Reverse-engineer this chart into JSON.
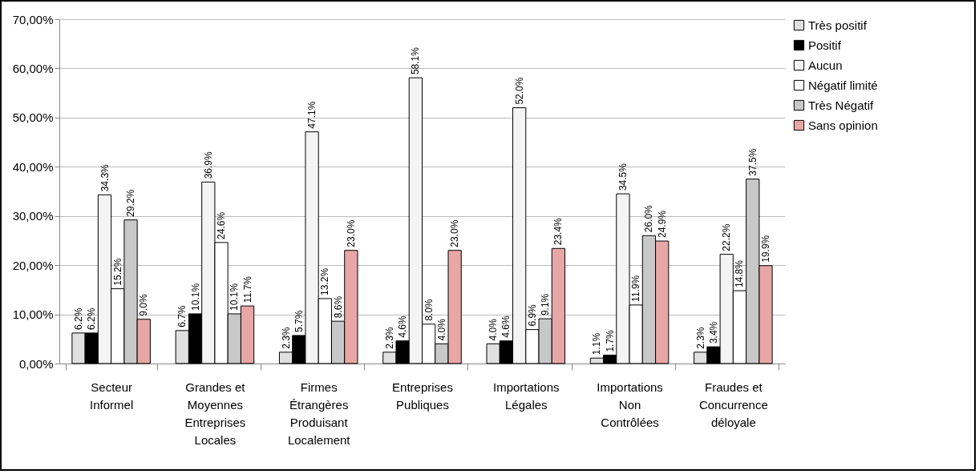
{
  "chart_data": {
    "type": "bar",
    "categories": [
      "Secteur Informel",
      "Grandes et Moyennes Entreprises Locales",
      "Firmes Étrangères Produisant Localement",
      "Entreprises Publiques",
      "Importations Légales",
      "Importations Non Contrôlées",
      "Fraudes et Concurrence déloyale"
    ],
    "series": [
      {
        "name": "Très positif",
        "color": "#e0e0e0",
        "values": [
          6.2,
          6.7,
          2.3,
          2.3,
          4.0,
          1.1,
          2.3
        ],
        "value_labels": [
          "6.2%",
          "6.7%",
          "2.3%",
          "2.3%",
          "4.0%",
          "1.1%",
          "2.3%"
        ]
      },
      {
        "name": "Positif",
        "color": "#000000",
        "values": [
          6.2,
          10.1,
          5.7,
          4.6,
          4.6,
          1.7,
          3.4
        ],
        "value_labels": [
          "6.2%",
          "10.1%",
          "5.7%",
          "4.6%",
          "4.6%",
          "1.7%",
          "3.4%"
        ]
      },
      {
        "name": "Aucun",
        "color": "#f4f4f4",
        "values": [
          34.3,
          36.9,
          47.1,
          58.1,
          52.0,
          34.5,
          22.2
        ],
        "value_labels": [
          "34.3%",
          "36.9%",
          "47.1%",
          "58.1%",
          "52.0%",
          "34.5%",
          "22.2%"
        ]
      },
      {
        "name": "Négatif limité",
        "color": "#ffffff",
        "values": [
          15.2,
          24.6,
          13.2,
          8.0,
          6.9,
          11.9,
          14.8
        ],
        "value_labels": [
          "15.2%",
          "24.6%",
          "13.2%",
          "8.0%",
          "6.9%",
          "11.9%",
          "14.8%"
        ]
      },
      {
        "name": "Très Négatif",
        "color": "#c8c8c8",
        "values": [
          29.2,
          10.1,
          8.6,
          4.0,
          9.1,
          26.0,
          37.5
        ],
        "value_labels": [
          "29.2%",
          "10.1%",
          "8.6%",
          "4.0%",
          "9.1%",
          "26.0%",
          "37.5%"
        ]
      },
      {
        "name": "Sans opinion",
        "color": "#e8a6a6",
        "values": [
          9.0,
          11.7,
          23.0,
          23.0,
          23.4,
          24.9,
          19.9
        ],
        "value_labels": [
          "9.0%",
          "11.7%",
          "23.0%",
          "23.0%",
          "23.4%",
          "24.9%",
          "19.9%"
        ]
      }
    ],
    "ylim": [
      0,
      70
    ],
    "yticks": [
      {
        "value": 0,
        "label": "0,00%"
      },
      {
        "value": 10,
        "label": "10,00%"
      },
      {
        "value": 20,
        "label": "20,00%"
      },
      {
        "value": 30,
        "label": "30,00%"
      },
      {
        "value": 40,
        "label": "40,00%"
      },
      {
        "value": 50,
        "label": "50,00%"
      },
      {
        "value": 60,
        "label": "60,00%"
      },
      {
        "value": 70,
        "label": "70,00%"
      }
    ],
    "grid": "y",
    "legend": "right"
  }
}
